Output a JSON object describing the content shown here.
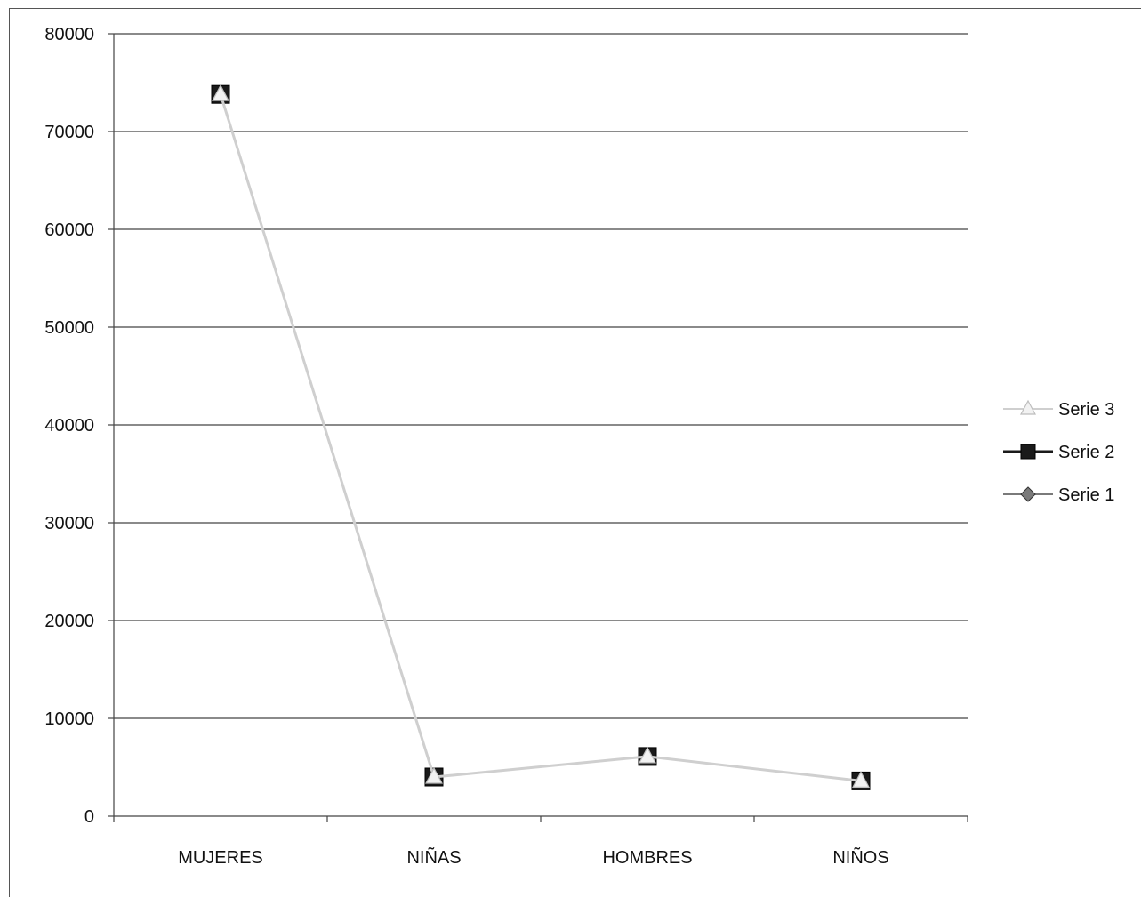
{
  "chart_data": {
    "type": "line",
    "categories": [
      "MUJERES",
      "NIÑAS",
      "HOMBRES",
      "NIÑOS"
    ],
    "series": [
      {
        "name": "Serie 1",
        "values": [
          73800,
          4000,
          6100,
          3600
        ],
        "color": "#7a7a7a",
        "marker": "diamond"
      },
      {
        "name": "Serie 2",
        "values": [
          73800,
          4000,
          6100,
          3600
        ],
        "color": "#1a1a1a",
        "marker": "square"
      },
      {
        "name": "Serie 3",
        "values": [
          73800,
          4000,
          6100,
          3600
        ],
        "color": "#cfcfcf",
        "marker": "triangle"
      }
    ],
    "legend_order": [
      "Serie 3",
      "Serie 2",
      "Serie 1"
    ],
    "ylim": [
      0,
      80000
    ],
    "yticks": [
      "0",
      "10000",
      "20000",
      "30000",
      "40000",
      "50000",
      "60000",
      "70000",
      "80000"
    ],
    "grid": true,
    "legend": "right",
    "title": "",
    "xlabel": "",
    "ylabel": ""
  }
}
